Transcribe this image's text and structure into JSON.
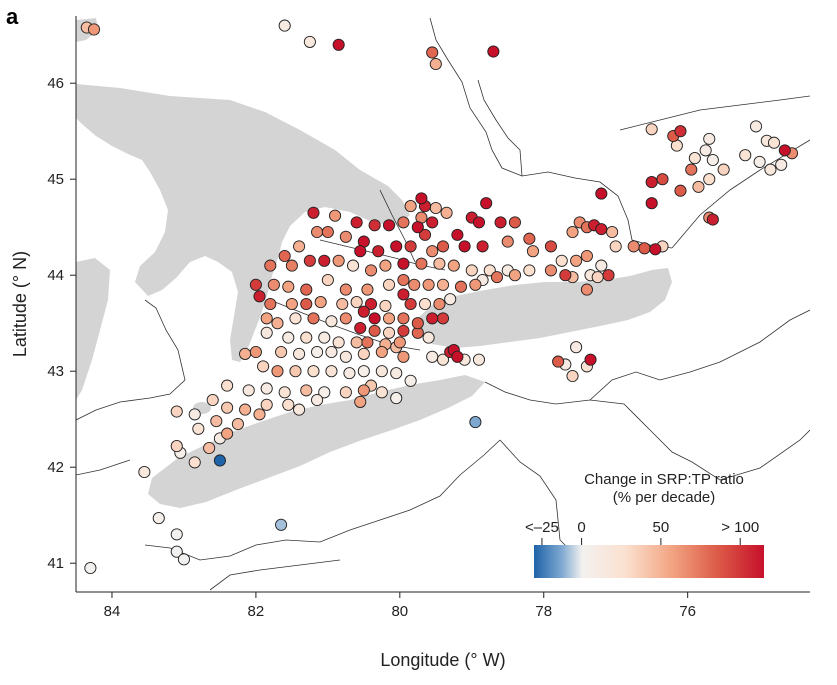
{
  "panel_label": "a",
  "chart_data": {
    "type": "scatter",
    "xlabel": "Longitude (° W)",
    "ylabel": "Latitude (° N)",
    "xlim": [
      84.5,
      74.3
    ],
    "ylim": [
      40.7,
      46.7
    ],
    "x_ticks": [
      {
        "value": 84,
        "label": "84"
      },
      {
        "value": 82,
        "label": "82"
      },
      {
        "value": 80,
        "label": "80"
      },
      {
        "value": 78,
        "label": "78"
      },
      {
        "value": 76,
        "label": "76"
      }
    ],
    "y_ticks": [
      {
        "value": 46,
        "label": "46"
      },
      {
        "value": 45,
        "label": "45"
      },
      {
        "value": 44,
        "label": "44"
      },
      {
        "value": 43,
        "label": "43"
      },
      {
        "value": 42,
        "label": "42"
      },
      {
        "value": 41,
        "label": "41"
      }
    ],
    "colorbar": {
      "title_line1": "Change in SRP:TP ratio",
      "title_line2": "(% per decade)",
      "min": -30,
      "max": 115,
      "ticks": [
        {
          "value": -25,
          "label": "<–25"
        },
        {
          "value": 0,
          "label": "0"
        },
        {
          "value": 50,
          "label": "50"
        },
        {
          "value": 100,
          "label": "> 100"
        }
      ]
    },
    "colors": {
      "lake": "#d4d4d4",
      "boundary": "#333333",
      "marker_edge": "#222222",
      "cmap": [
        "#1f63a8",
        "#7ea8d1",
        "#e8eef5",
        "#fbe2d3",
        "#f2a482",
        "#dc5a48",
        "#c7102a"
      ]
    },
    "points": [
      {
        "x": 84.35,
        "y": 46.58,
        "v": 40
      },
      {
        "x": 84.25,
        "y": 46.56,
        "v": 55
      },
      {
        "x": 81.6,
        "y": 46.6,
        "v": 10
      },
      {
        "x": 81.25,
        "y": 46.43,
        "v": 15
      },
      {
        "x": 80.85,
        "y": 46.4,
        "v": 105
      },
      {
        "x": 79.55,
        "y": 46.32,
        "v": 75
      },
      {
        "x": 78.7,
        "y": 46.33,
        "v": 105
      },
      {
        "x": 79.5,
        "y": 46.2,
        "v": 45
      },
      {
        "x": 76.5,
        "y": 45.52,
        "v": 30
      },
      {
        "x": 76.2,
        "y": 45.45,
        "v": 80
      },
      {
        "x": 76.1,
        "y": 45.5,
        "v": 95
      },
      {
        "x": 76.15,
        "y": 45.35,
        "v": 25
      },
      {
        "x": 75.9,
        "y": 45.22,
        "v": 20
      },
      {
        "x": 75.7,
        "y": 45.42,
        "v": 10
      },
      {
        "x": 75.75,
        "y": 45.3,
        "v": 8
      },
      {
        "x": 75.65,
        "y": 45.2,
        "v": 5
      },
      {
        "x": 75.5,
        "y": 45.1,
        "v": 30
      },
      {
        "x": 75.2,
        "y": 45.25,
        "v": 20
      },
      {
        "x": 75.05,
        "y": 45.55,
        "v": 10
      },
      {
        "x": 74.9,
        "y": 45.4,
        "v": 15
      },
      {
        "x": 74.8,
        "y": 45.38,
        "v": 20
      },
      {
        "x": 74.65,
        "y": 45.3,
        "v": 105
      },
      {
        "x": 74.55,
        "y": 45.27,
        "v": 60
      },
      {
        "x": 74.7,
        "y": 45.15,
        "v": 10
      },
      {
        "x": 74.85,
        "y": 45.1,
        "v": 15
      },
      {
        "x": 75.0,
        "y": 45.18,
        "v": 5
      },
      {
        "x": 75.95,
        "y": 45.1,
        "v": 70
      },
      {
        "x": 76.5,
        "y": 44.97,
        "v": 100
      },
      {
        "x": 76.35,
        "y": 45.0,
        "v": 85
      },
      {
        "x": 76.1,
        "y": 44.88,
        "v": 80
      },
      {
        "x": 75.85,
        "y": 44.92,
        "v": 40
      },
      {
        "x": 75.7,
        "y": 45.0,
        "v": 25
      },
      {
        "x": 76.5,
        "y": 44.75,
        "v": 105
      },
      {
        "x": 77.2,
        "y": 44.85,
        "v": 105
      },
      {
        "x": 75.65,
        "y": 44.58,
        "v": 100
      },
      {
        "x": 75.7,
        "y": 44.6,
        "v": 60
      },
      {
        "x": 81.2,
        "y": 44.65,
        "v": 100
      },
      {
        "x": 80.9,
        "y": 44.62,
        "v": 55
      },
      {
        "x": 80.6,
        "y": 44.55,
        "v": 100
      },
      {
        "x": 80.35,
        "y": 44.52,
        "v": 95
      },
      {
        "x": 80.15,
        "y": 44.52,
        "v": 105
      },
      {
        "x": 79.95,
        "y": 44.55,
        "v": 70
      },
      {
        "x": 79.7,
        "y": 44.8,
        "v": 105
      },
      {
        "x": 79.65,
        "y": 44.72,
        "v": 100
      },
      {
        "x": 79.5,
        "y": 44.7,
        "v": 40
      },
      {
        "x": 79.35,
        "y": 44.65,
        "v": 45
      },
      {
        "x": 79.7,
        "y": 44.6,
        "v": 60
      },
      {
        "x": 79.85,
        "y": 44.72,
        "v": 50
      },
      {
        "x": 79.55,
        "y": 44.55,
        "v": 100
      },
      {
        "x": 79.75,
        "y": 44.5,
        "v": 105
      },
      {
        "x": 79.65,
        "y": 44.42,
        "v": 90
      },
      {
        "x": 79.2,
        "y": 44.42,
        "v": 105
      },
      {
        "x": 79.0,
        "y": 44.6,
        "v": 100
      },
      {
        "x": 78.9,
        "y": 44.55,
        "v": 105
      },
      {
        "x": 78.8,
        "y": 44.75,
        "v": 105
      },
      {
        "x": 78.6,
        "y": 44.55,
        "v": 100
      },
      {
        "x": 78.4,
        "y": 44.55,
        "v": 80
      },
      {
        "x": 78.2,
        "y": 44.38,
        "v": 75
      },
      {
        "x": 77.9,
        "y": 44.3,
        "v": 85
      },
      {
        "x": 77.5,
        "y": 44.55,
        "v": 60
      },
      {
        "x": 77.4,
        "y": 44.5,
        "v": 70
      },
      {
        "x": 77.3,
        "y": 44.52,
        "v": 100
      },
      {
        "x": 77.2,
        "y": 44.48,
        "v": 100
      },
      {
        "x": 77.6,
        "y": 44.45,
        "v": 50
      },
      {
        "x": 77.05,
        "y": 44.45,
        "v": 40
      },
      {
        "x": 81.15,
        "y": 44.45,
        "v": 60
      },
      {
        "x": 81.0,
        "y": 44.45,
        "v": 70
      },
      {
        "x": 80.75,
        "y": 44.4,
        "v": 60
      },
      {
        "x": 80.5,
        "y": 44.35,
        "v": 105
      },
      {
        "x": 80.55,
        "y": 44.25,
        "v": 105
      },
      {
        "x": 80.3,
        "y": 44.25,
        "v": 100
      },
      {
        "x": 80.05,
        "y": 44.3,
        "v": 105
      },
      {
        "x": 79.85,
        "y": 44.3,
        "v": 90
      },
      {
        "x": 79.55,
        "y": 44.25,
        "v": 60
      },
      {
        "x": 79.4,
        "y": 44.3,
        "v": 80
      },
      {
        "x": 79.1,
        "y": 44.3,
        "v": 105
      },
      {
        "x": 78.85,
        "y": 44.3,
        "v": 100
      },
      {
        "x": 78.5,
        "y": 44.35,
        "v": 60
      },
      {
        "x": 78.15,
        "y": 44.25,
        "v": 50
      },
      {
        "x": 77.75,
        "y": 44.15,
        "v": 25
      },
      {
        "x": 77.55,
        "y": 44.15,
        "v": 50
      },
      {
        "x": 77.4,
        "y": 44.2,
        "v": 55
      },
      {
        "x": 77.2,
        "y": 44.1,
        "v": 10
      },
      {
        "x": 77.0,
        "y": 44.3,
        "v": 30
      },
      {
        "x": 76.75,
        "y": 44.3,
        "v": 60
      },
      {
        "x": 76.6,
        "y": 44.28,
        "v": 80
      },
      {
        "x": 76.45,
        "y": 44.27,
        "v": 105
      },
      {
        "x": 76.35,
        "y": 44.3,
        "v": 30
      },
      {
        "x": 81.4,
        "y": 44.3,
        "v": 45
      },
      {
        "x": 81.6,
        "y": 44.2,
        "v": 75
      },
      {
        "x": 81.5,
        "y": 44.1,
        "v": 65
      },
      {
        "x": 81.25,
        "y": 44.15,
        "v": 90
      },
      {
        "x": 81.05,
        "y": 44.15,
        "v": 100
      },
      {
        "x": 80.85,
        "y": 44.15,
        "v": 55
      },
      {
        "x": 81.8,
        "y": 44.1,
        "v": 70
      },
      {
        "x": 80.65,
        "y": 44.1,
        "v": 20
      },
      {
        "x": 80.4,
        "y": 44.05,
        "v": 60
      },
      {
        "x": 80.2,
        "y": 44.1,
        "v": 50
      },
      {
        "x": 79.95,
        "y": 44.12,
        "v": 105
      },
      {
        "x": 79.7,
        "y": 44.12,
        "v": 70
      },
      {
        "x": 79.45,
        "y": 44.12,
        "v": 40
      },
      {
        "x": 79.25,
        "y": 44.1,
        "v": 50
      },
      {
        "x": 79.0,
        "y": 44.05,
        "v": 30
      },
      {
        "x": 78.75,
        "y": 44.05,
        "v": 25
      },
      {
        "x": 78.5,
        "y": 44.05,
        "v": 10
      },
      {
        "x": 78.2,
        "y": 44.05,
        "v": 25
      },
      {
        "x": 77.9,
        "y": 44.05,
        "v": 60
      },
      {
        "x": 77.7,
        "y": 44.0,
        "v": 90
      },
      {
        "x": 77.6,
        "y": 43.98,
        "v": 40
      },
      {
        "x": 77.35,
        "y": 44.0,
        "v": 15
      },
      {
        "x": 77.25,
        "y": 43.98,
        "v": 30
      },
      {
        "x": 77.1,
        "y": 44.0,
        "v": 90
      },
      {
        "x": 77.4,
        "y": 43.85,
        "v": 60
      },
      {
        "x": 81.75,
        "y": 43.9,
        "v": 60
      },
      {
        "x": 81.55,
        "y": 43.88,
        "v": 50
      },
      {
        "x": 81.3,
        "y": 43.85,
        "v": 75
      },
      {
        "x": 81.0,
        "y": 43.95,
        "v": 30
      },
      {
        "x": 80.75,
        "y": 43.85,
        "v": 60
      },
      {
        "x": 80.45,
        "y": 43.85,
        "v": 55
      },
      {
        "x": 80.15,
        "y": 43.9,
        "v": 30
      },
      {
        "x": 79.95,
        "y": 43.95,
        "v": 70
      },
      {
        "x": 79.8,
        "y": 43.9,
        "v": 60
      },
      {
        "x": 79.6,
        "y": 43.9,
        "v": 55
      },
      {
        "x": 79.4,
        "y": 43.9,
        "v": 45
      },
      {
        "x": 79.15,
        "y": 43.88,
        "v": 70
      },
      {
        "x": 78.95,
        "y": 43.9,
        "v": 55
      },
      {
        "x": 78.85,
        "y": 43.95,
        "v": 10
      },
      {
        "x": 78.65,
        "y": 43.98,
        "v": 70
      },
      {
        "x": 78.4,
        "y": 44.0,
        "v": 50
      },
      {
        "x": 82.0,
        "y": 43.9,
        "v": 90
      },
      {
        "x": 81.95,
        "y": 43.78,
        "v": 100
      },
      {
        "x": 81.8,
        "y": 43.7,
        "v": 70
      },
      {
        "x": 81.5,
        "y": 43.7,
        "v": 50
      },
      {
        "x": 81.3,
        "y": 43.7,
        "v": 80
      },
      {
        "x": 81.1,
        "y": 43.72,
        "v": 50
      },
      {
        "x": 80.8,
        "y": 43.7,
        "v": 40
      },
      {
        "x": 80.6,
        "y": 43.72,
        "v": 30
      },
      {
        "x": 80.4,
        "y": 43.7,
        "v": 100
      },
      {
        "x": 80.2,
        "y": 43.68,
        "v": 30
      },
      {
        "x": 79.95,
        "y": 43.8,
        "v": 100
      },
      {
        "x": 79.85,
        "y": 43.7,
        "v": 90
      },
      {
        "x": 79.65,
        "y": 43.7,
        "v": 25
      },
      {
        "x": 79.45,
        "y": 43.7,
        "v": 60
      },
      {
        "x": 79.3,
        "y": 43.75,
        "v": 10
      },
      {
        "x": 81.85,
        "y": 43.55,
        "v": 50
      },
      {
        "x": 81.7,
        "y": 43.5,
        "v": 45
      },
      {
        "x": 81.45,
        "y": 43.55,
        "v": 20
      },
      {
        "x": 81.2,
        "y": 43.55,
        "v": 70
      },
      {
        "x": 80.95,
        "y": 43.52,
        "v": 15
      },
      {
        "x": 80.75,
        "y": 43.55,
        "v": 60
      },
      {
        "x": 80.5,
        "y": 43.62,
        "v": 100
      },
      {
        "x": 80.35,
        "y": 43.55,
        "v": 105
      },
      {
        "x": 80.15,
        "y": 43.55,
        "v": 50
      },
      {
        "x": 79.95,
        "y": 43.55,
        "v": 70
      },
      {
        "x": 79.75,
        "y": 43.5,
        "v": 80
      },
      {
        "x": 79.55,
        "y": 43.55,
        "v": 100
      },
      {
        "x": 79.4,
        "y": 43.55,
        "v": 90
      },
      {
        "x": 80.55,
        "y": 43.45,
        "v": 100
      },
      {
        "x": 80.35,
        "y": 43.42,
        "v": 80
      },
      {
        "x": 80.15,
        "y": 43.4,
        "v": 30
      },
      {
        "x": 79.95,
        "y": 43.42,
        "v": 90
      },
      {
        "x": 79.75,
        "y": 43.4,
        "v": 75
      },
      {
        "x": 81.85,
        "y": 43.4,
        "v": 15
      },
      {
        "x": 81.55,
        "y": 43.35,
        "v": 10
      },
      {
        "x": 81.3,
        "y": 43.35,
        "v": 25
      },
      {
        "x": 81.05,
        "y": 43.35,
        "v": 10
      },
      {
        "x": 80.85,
        "y": 43.3,
        "v": 20
      },
      {
        "x": 80.6,
        "y": 43.3,
        "v": 40
      },
      {
        "x": 80.45,
        "y": 43.3,
        "v": 70
      },
      {
        "x": 80.2,
        "y": 43.28,
        "v": 45
      },
      {
        "x": 80.0,
        "y": 43.3,
        "v": 55
      },
      {
        "x": 81.65,
        "y": 43.2,
        "v": 35
      },
      {
        "x": 81.4,
        "y": 43.18,
        "v": 15
      },
      {
        "x": 81.15,
        "y": 43.2,
        "v": 5
      },
      {
        "x": 80.95,
        "y": 43.2,
        "v": 10
      },
      {
        "x": 80.75,
        "y": 43.15,
        "v": 15
      },
      {
        "x": 80.5,
        "y": 43.18,
        "v": 30
      },
      {
        "x": 80.25,
        "y": 43.2,
        "v": 50
      },
      {
        "x": 80.05,
        "y": 43.25,
        "v": 40
      },
      {
        "x": 79.95,
        "y": 43.15,
        "v": 55
      },
      {
        "x": 82.0,
        "y": 43.2,
        "v": 55
      },
      {
        "x": 82.15,
        "y": 43.18,
        "v": 45
      },
      {
        "x": 81.9,
        "y": 43.05,
        "v": 30
      },
      {
        "x": 81.7,
        "y": 43.0,
        "v": 55
      },
      {
        "x": 81.45,
        "y": 43.0,
        "v": 35
      },
      {
        "x": 81.2,
        "y": 43.0,
        "v": 25
      },
      {
        "x": 80.95,
        "y": 43.0,
        "v": 20
      },
      {
        "x": 80.7,
        "y": 42.98,
        "v": 10
      },
      {
        "x": 80.5,
        "y": 43.0,
        "v": 5
      },
      {
        "x": 80.25,
        "y": 43.0,
        "v": 15
      },
      {
        "x": 80.05,
        "y": 42.98,
        "v": 10
      },
      {
        "x": 79.85,
        "y": 42.9,
        "v": 5
      },
      {
        "x": 82.4,
        "y": 42.85,
        "v": 25
      },
      {
        "x": 82.1,
        "y": 42.8,
        "v": 15
      },
      {
        "x": 81.85,
        "y": 42.82,
        "v": 10
      },
      {
        "x": 81.6,
        "y": 42.78,
        "v": 20
      },
      {
        "x": 81.3,
        "y": 42.8,
        "v": 40
      },
      {
        "x": 81.05,
        "y": 42.78,
        "v": 5
      },
      {
        "x": 80.75,
        "y": 42.78,
        "v": 30
      },
      {
        "x": 80.5,
        "y": 42.8,
        "v": 55
      },
      {
        "x": 80.25,
        "y": 42.78,
        "v": 20
      },
      {
        "x": 80.55,
        "y": 42.68,
        "v": 50
      },
      {
        "x": 80.4,
        "y": 42.85,
        "v": 35
      },
      {
        "x": 80.05,
        "y": 42.72,
        "v": 5
      },
      {
        "x": 82.6,
        "y": 42.7,
        "v": 30
      },
      {
        "x": 82.4,
        "y": 42.62,
        "v": 35
      },
      {
        "x": 82.15,
        "y": 42.6,
        "v": 45
      },
      {
        "x": 81.85,
        "y": 42.65,
        "v": 30
      },
      {
        "x": 81.55,
        "y": 42.65,
        "v": 25
      },
      {
        "x": 81.4,
        "y": 42.6,
        "v": 15
      },
      {
        "x": 81.15,
        "y": 42.7,
        "v": 10
      },
      {
        "x": 82.85,
        "y": 42.55,
        "v": 10
      },
      {
        "x": 82.55,
        "y": 42.48,
        "v": 40
      },
      {
        "x": 82.25,
        "y": 42.45,
        "v": 40
      },
      {
        "x": 81.95,
        "y": 42.55,
        "v": 45
      },
      {
        "x": 83.1,
        "y": 42.58,
        "v": 30
      },
      {
        "x": 82.8,
        "y": 42.4,
        "v": 20
      },
      {
        "x": 82.4,
        "y": 42.35,
        "v": 50
      },
      {
        "x": 82.65,
        "y": 42.2,
        "v": 40
      },
      {
        "x": 82.5,
        "y": 42.3,
        "v": 10
      },
      {
        "x": 83.1,
        "y": 42.22,
        "v": 30
      },
      {
        "x": 83.05,
        "y": 42.15,
        "v": 5
      },
      {
        "x": 82.85,
        "y": 42.05,
        "v": 25
      },
      {
        "x": 82.5,
        "y": 42.07,
        "v": -30
      },
      {
        "x": 83.55,
        "y": 41.95,
        "v": 15
      },
      {
        "x": 83.35,
        "y": 41.47,
        "v": 5
      },
      {
        "x": 83.1,
        "y": 41.3,
        "v": 0
      },
      {
        "x": 83.1,
        "y": 41.12,
        "v": 0
      },
      {
        "x": 83.0,
        "y": 41.04,
        "v": 0
      },
      {
        "x": 84.3,
        "y": 40.95,
        "v": 0
      },
      {
        "x": 81.65,
        "y": 41.4,
        "v": -10
      },
      {
        "x": 78.95,
        "y": 42.47,
        "v": -15
      },
      {
        "x": 79.25,
        "y": 43.22,
        "v": 105
      },
      {
        "x": 79.2,
        "y": 43.15,
        "v": 105
      },
      {
        "x": 79.3,
        "y": 43.2,
        "v": 100
      },
      {
        "x": 79.1,
        "y": 43.12,
        "v": 15
      },
      {
        "x": 78.9,
        "y": 43.12,
        "v": 15
      },
      {
        "x": 79.4,
        "y": 43.12,
        "v": 20
      },
      {
        "x": 79.55,
        "y": 43.15,
        "v": 10
      },
      {
        "x": 79.6,
        "y": 43.35,
        "v": 15
      },
      {
        "x": 77.55,
        "y": 43.25,
        "v": 10
      },
      {
        "x": 77.8,
        "y": 43.1,
        "v": 80
      },
      {
        "x": 77.35,
        "y": 43.12,
        "v": 105
      },
      {
        "x": 77.4,
        "y": 43.05,
        "v": 20
      },
      {
        "x": 77.6,
        "y": 42.95,
        "v": 30
      },
      {
        "x": 77.7,
        "y": 43.07,
        "v": 10
      }
    ]
  }
}
